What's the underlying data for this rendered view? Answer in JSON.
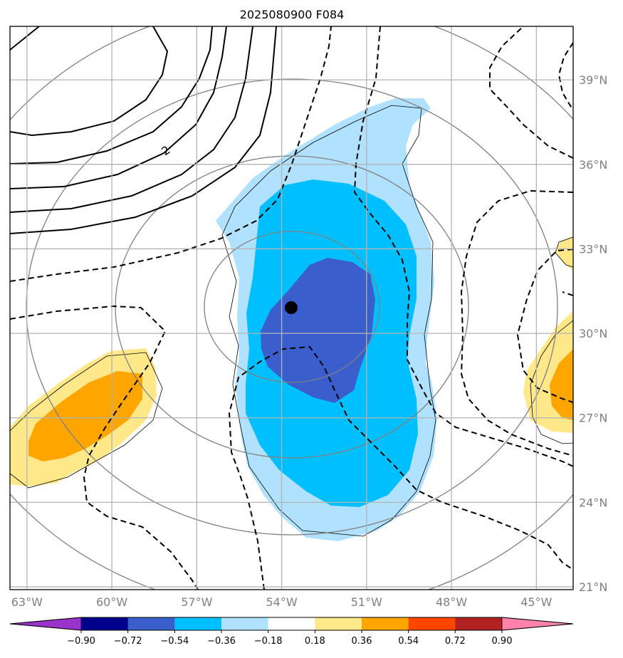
{
  "chart_data": {
    "type": "heatmap",
    "title": "2025080900 F084",
    "lon_ticks": [
      "63°W",
      "60°W",
      "57°W",
      "54°W",
      "51°W",
      "48°W",
      "45°W"
    ],
    "lat_ticks": [
      "39°N",
      "36°N",
      "33°N",
      "30°N",
      "27°N",
      "24°N",
      "21°N"
    ],
    "lon_range": [
      -63.6,
      -43.7
    ],
    "lat_range": [
      20.9,
      40.9
    ],
    "grid": true,
    "colorbar": {
      "orientation": "horizontal",
      "extend": "both",
      "tick_labels": [
        "−0.90",
        "−0.72",
        "−0.54",
        "−0.36",
        "−0.18",
        "0.18",
        "0.36",
        "0.54",
        "0.72",
        "0.90"
      ],
      "colors": [
        "#9933cc",
        "#00008b",
        "#3a5fcd",
        "#00bfff",
        "#b0e2ff",
        "#ffffff",
        "#ffe88a",
        "#ffa500",
        "#ff4500",
        "#b22222",
        "#ff82ab"
      ]
    },
    "contour_label": "2",
    "storm_center": {
      "lon": -53.7,
      "lat": 30.9
    }
  }
}
